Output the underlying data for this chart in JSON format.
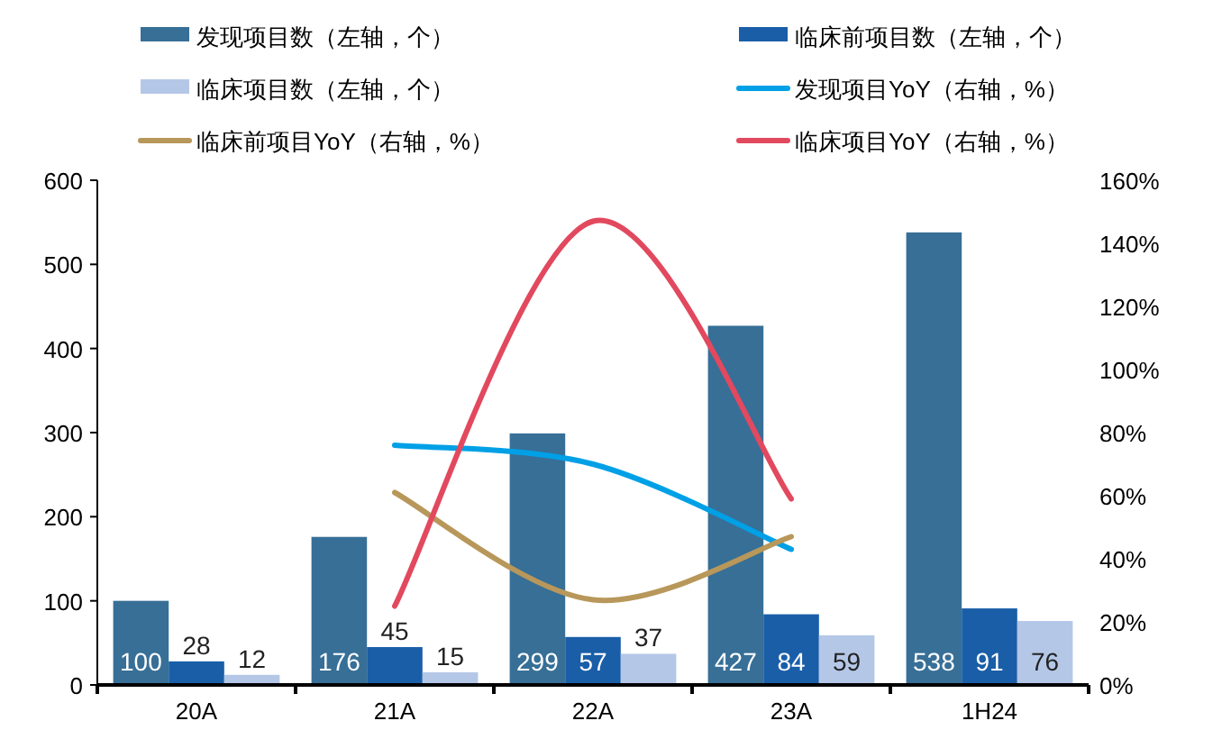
{
  "chart_data": {
    "type": "bar",
    "categories": [
      "20A",
      "21A",
      "22A",
      "23A",
      "1H24"
    ],
    "series": [
      {
        "name": "发现项目数（左轴，个）",
        "color": "#376f97",
        "values": [
          100,
          176,
          299,
          427,
          538
        ],
        "value_labels": [
          "100",
          "176",
          "299",
          "427",
          "538"
        ]
      },
      {
        "name": "临床前项目数（左轴，个）",
        "color": "#1a5ea8",
        "values": [
          28,
          45,
          57,
          84,
          91
        ],
        "value_labels": [
          "28",
          "45",
          "57",
          "84",
          "91"
        ]
      },
      {
        "name": "临床项目数（左轴，个）",
        "color": "#b4c7e7",
        "values": [
          12,
          15,
          37,
          59,
          76
        ],
        "value_labels": [
          "12",
          "15",
          "37",
          "59",
          "76"
        ]
      },
      {
        "name": "发现项目YoY（右轴，%）",
        "type": "line",
        "axis": "y2",
        "color": "#00a0e6",
        "values": [
          null,
          76,
          70,
          43,
          null
        ]
      },
      {
        "name": "临床前项目YoY（右轴，%）",
        "type": "line",
        "axis": "y2",
        "color": "#b8975a",
        "values": [
          null,
          61,
          27,
          47,
          null
        ]
      },
      {
        "name": "临床项目YoY（右轴，%）",
        "type": "line",
        "axis": "y2",
        "color": "#e2495e",
        "values": [
          null,
          25,
          147,
          59,
          null
        ]
      }
    ],
    "ylim": [
      0,
      600
    ],
    "yticks": [
      0,
      100,
      200,
      300,
      400,
      500,
      600
    ],
    "y2lim": [
      0,
      160
    ],
    "y2ticks": [
      {
        "value": 0,
        "label": "0%"
      },
      {
        "value": 20,
        "label": "20%"
      },
      {
        "value": 40,
        "label": "40%"
      },
      {
        "value": 60,
        "label": "60%"
      },
      {
        "value": 80,
        "label": "80%"
      },
      {
        "value": 100,
        "label": "100%"
      },
      {
        "value": 120,
        "label": "120%"
      },
      {
        "value": 140,
        "label": "140%"
      },
      {
        "value": 160,
        "label": "160%"
      }
    ],
    "legend": "top"
  }
}
